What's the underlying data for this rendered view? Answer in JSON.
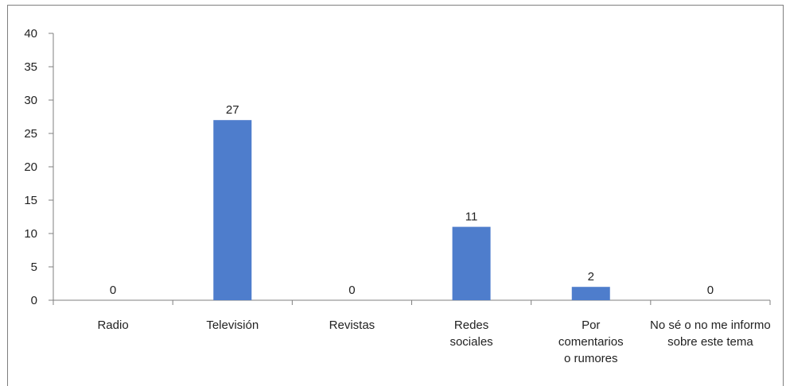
{
  "chart_data": {
    "type": "bar",
    "categories": [
      [
        "Radio"
      ],
      [
        "Televisión"
      ],
      [
        "Revistas"
      ],
      [
        "Redes",
        "sociales"
      ],
      [
        "Por",
        "comentarios",
        "o rumores"
      ],
      [
        "No sé o no me informo",
        "sobre este tema"
      ]
    ],
    "values": [
      0,
      27,
      0,
      11,
      2,
      0
    ],
    "data_labels": [
      "0",
      "27",
      "0",
      "11",
      "2",
      "0"
    ],
    "ylim": [
      0,
      40
    ],
    "yticks": [
      "0",
      "5",
      "10",
      "15",
      "20",
      "25",
      "30",
      "35",
      "40"
    ],
    "bar_color": "#4e7dcc",
    "grid": false,
    "legend": "none"
  }
}
